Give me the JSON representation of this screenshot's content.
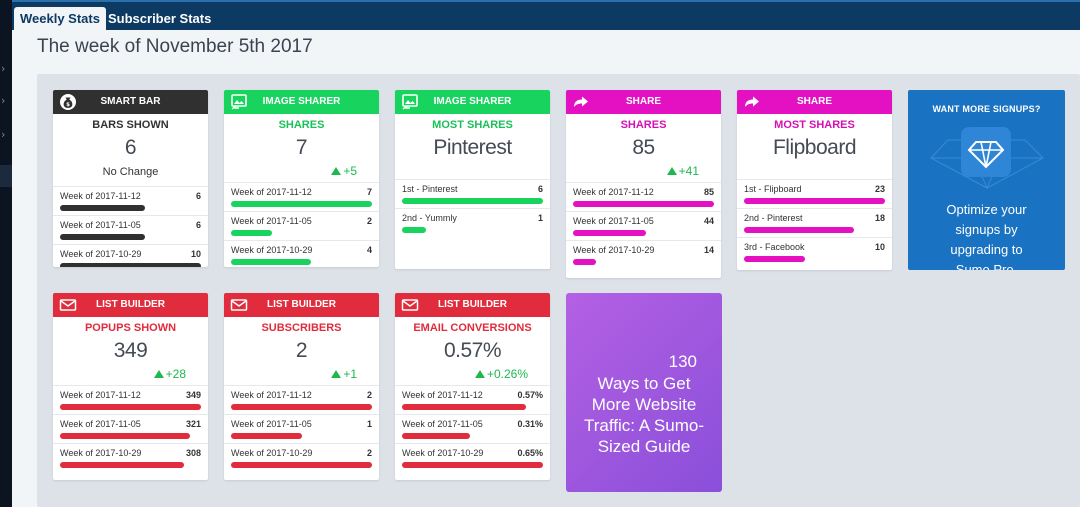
{
  "tabs": [
    {
      "label": "Weekly Stats",
      "active": true
    },
    {
      "label": "Subscriber Stats",
      "active": false
    }
  ],
  "page_title": "The week of November 5th 2017",
  "colors": {
    "dark": "#303030",
    "green": "#19d35f",
    "magenta": "#e411c2",
    "red": "#e02c3c",
    "blue": "#1a72c3",
    "purple": "#a157e0",
    "delta_green": "#1fb84f"
  },
  "cards": {
    "smartbar": {
      "header": "SMART BAR",
      "icon": "money-bag-icon",
      "metric_label": "BARS SHOWN",
      "metric_value": "6",
      "change": "No Change",
      "rows": [
        {
          "label": "Week of 2017-11-12",
          "value": "6",
          "fraction": 0.6
        },
        {
          "label": "Week of 2017-11-05",
          "value": "6",
          "fraction": 0.6
        },
        {
          "label": "Week of 2017-10-29",
          "value": "10",
          "fraction": 1.0
        }
      ]
    },
    "imgshares": {
      "header": "IMAGE SHARER",
      "icon": "image-share-icon",
      "metric_label": "SHARES",
      "metric_value": "7",
      "delta": "+5",
      "rows": [
        {
          "label": "Week of 2017-11-12",
          "value": "7",
          "fraction": 1.0
        },
        {
          "label": "Week of 2017-11-05",
          "value": "2",
          "fraction": 0.29
        },
        {
          "label": "Week of 2017-10-29",
          "value": "4",
          "fraction": 0.57
        }
      ]
    },
    "imgmost": {
      "header": "IMAGE SHARER",
      "icon": "image-share-icon",
      "metric_label": "MOST SHARES",
      "metric_value": "Pinterest",
      "rows": [
        {
          "label": "1st - Pinterest",
          "value": "6",
          "fraction": 1.0
        },
        {
          "label": "2nd - Yummly",
          "value": "1",
          "fraction": 0.17
        }
      ]
    },
    "shares": {
      "header": "SHARE",
      "icon": "share-arrow-icon",
      "metric_label": "SHARES",
      "metric_value": "85",
      "delta": "+41",
      "rows": [
        {
          "label": "Week of 2017-11-12",
          "value": "85",
          "fraction": 1.0
        },
        {
          "label": "Week of 2017-11-05",
          "value": "44",
          "fraction": 0.52
        },
        {
          "label": "Week of 2017-10-29",
          "value": "14",
          "fraction": 0.16
        }
      ]
    },
    "sharemost": {
      "header": "SHARE",
      "icon": "share-arrow-icon",
      "metric_label": "MOST SHARES",
      "metric_value": "Flipboard",
      "rows": [
        {
          "label": "1st - Flipboard",
          "value": "23",
          "fraction": 1.0
        },
        {
          "label": "2nd - Pinterest",
          "value": "18",
          "fraction": 0.78
        },
        {
          "label": "3rd - Facebook",
          "value": "10",
          "fraction": 0.43
        }
      ]
    },
    "popups": {
      "header": "LIST BUILDER",
      "icon": "envelope-icon",
      "metric_label": "POPUPS SHOWN",
      "metric_value": "349",
      "delta": "+28",
      "rows": [
        {
          "label": "Week of 2017-11-12",
          "value": "349",
          "fraction": 1.0
        },
        {
          "label": "Week of 2017-11-05",
          "value": "321",
          "fraction": 0.92
        },
        {
          "label": "Week of 2017-10-29",
          "value": "308",
          "fraction": 0.88
        }
      ]
    },
    "subs": {
      "header": "LIST BUILDER",
      "icon": "envelope-icon",
      "metric_label": "SUBSCRIBERS",
      "metric_value": "2",
      "delta": "+1",
      "rows": [
        {
          "label": "Week of 2017-11-12",
          "value": "2",
          "fraction": 1.0
        },
        {
          "label": "Week of 2017-11-05",
          "value": "1",
          "fraction": 0.5
        },
        {
          "label": "Week of 2017-10-29",
          "value": "2",
          "fraction": 1.0
        }
      ]
    },
    "emailconv": {
      "header": "LIST BUILDER",
      "icon": "envelope-icon",
      "metric_label": "EMAIL CONVERSIONS",
      "metric_value": "0.57%",
      "delta": "+0.26%",
      "rows": [
        {
          "label": "Week of 2017-11-12",
          "value": "0.57%",
          "fraction": 0.88
        },
        {
          "label": "Week of 2017-11-05",
          "value": "0.31%",
          "fraction": 0.48
        },
        {
          "label": "Week of 2017-10-29",
          "value": "0.65%",
          "fraction": 1.0
        }
      ]
    }
  },
  "promo_signups": {
    "title": "WANT MORE SIGNUPS?",
    "icon": "diamond-icon",
    "text_lines": [
      "Optimize your",
      "signups by",
      "upgrading to",
      "Sumo Pro."
    ]
  },
  "promo_guide": {
    "number": "130",
    "text_lines": [
      "Ways to Get",
      "More Website",
      "Traffic: A Sumo-",
      "Sized Guide"
    ]
  }
}
